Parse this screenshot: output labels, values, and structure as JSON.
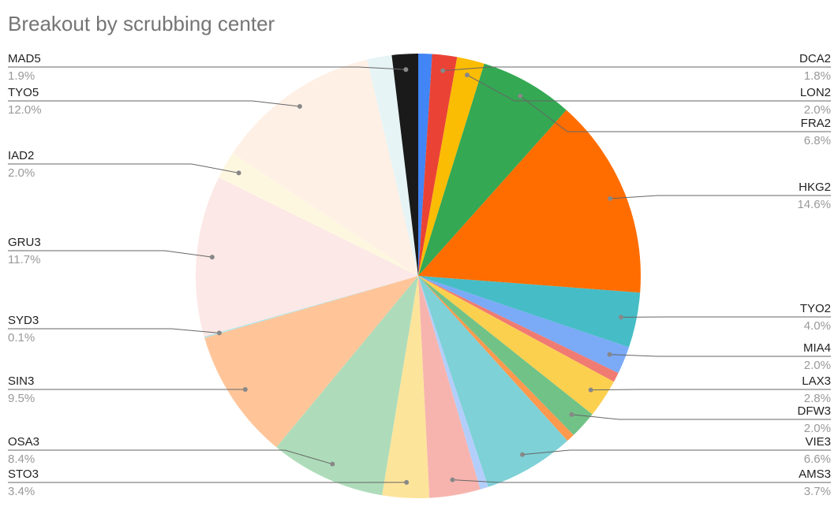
{
  "chart_data": {
    "type": "pie",
    "title": "Breakout by scrubbing center",
    "categories": [
      null,
      "DCA2",
      "LON2",
      "FRA2",
      "HKG2",
      "TYO2",
      "MIA4",
      null,
      "LAX3",
      "DFW3",
      null,
      "VIE3",
      null,
      "AMS3",
      "STO3",
      "OSA3",
      "SIN3",
      "SYD3",
      "GRU3",
      "IAD2",
      "TYO5",
      null,
      "MAD5"
    ],
    "values": [
      1.0,
      1.8,
      2.0,
      6.8,
      14.6,
      4.0,
      2.0,
      0.7,
      2.8,
      2.0,
      0.6,
      6.6,
      0.6,
      3.7,
      3.4,
      8.4,
      9.5,
      0.1,
      11.7,
      2.0,
      12.0,
      1.8,
      1.9
    ],
    "value_labels": [
      null,
      "1.8%",
      "2.0%",
      "6.8%",
      "14.6%",
      "4.0%",
      "2.0%",
      null,
      "2.8%",
      "2.0%",
      null,
      "6.6%",
      null,
      "3.7%",
      "3.4%",
      "8.4%",
      "9.5%",
      "0.1%",
      "11.7%",
      "2.0%",
      "12.0%",
      null,
      "1.9%"
    ],
    "colors": [
      "#4285f4",
      "#ea4335",
      "#fbbc04",
      "#34a853",
      "#ff6d01",
      "#46bdc6",
      "#7baaf7",
      "#f07b72",
      "#fcd04f",
      "#71c287",
      "#ff994d",
      "#7ed1d7",
      "#b3cefb",
      "#f7b4ae",
      "#fde49b",
      "#aedcba",
      "#ffc599",
      "#b0e3e7",
      "#fce8e6",
      "#fef7e0",
      "#fff0e6",
      "#e6f4f5",
      "#1a1a1a"
    ]
  }
}
